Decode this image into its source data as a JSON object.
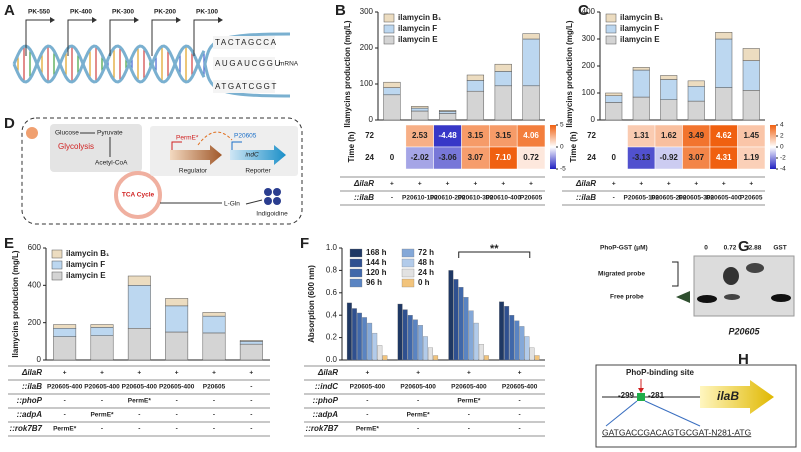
{
  "chart_data": [
    {
      "label": "B",
      "type": "bar",
      "stacked": true,
      "ylabel": "Ilamycins production (mg/L)",
      "ylim": [
        0,
        300
      ],
      "yticks": [
        0,
        100,
        200,
        300
      ],
      "series": [
        {
          "name": "ilamycin E",
          "color": "#d4d4d4",
          "values": [
            70,
            25,
            18,
            80,
            95,
            95
          ]
        },
        {
          "name": "ilamycin F",
          "color": "#bcd7f0",
          "values": [
            20,
            8,
            6,
            30,
            40,
            130
          ]
        },
        {
          "name": "ilamycin B₁",
          "color": "#ecdcc0",
          "values": [
            15,
            5,
            3,
            15,
            20,
            15
          ]
        }
      ],
      "heatmap": {
        "ylabel": "Time (h)",
        "rows": [
          "72",
          "24"
        ],
        "values": [
          [
            null,
            2.53,
            -4.48,
            3.15,
            3.15,
            4.06
          ],
          [
            0,
            -2.02,
            -3.06,
            3.07,
            7.1,
            0.72
          ]
        ],
        "value_labels": [
          [
            null,
            "2.53",
            "-4.48",
            "3.15",
            "3.15",
            "4.06"
          ],
          [
            "0",
            "-2.02",
            "-3.06",
            "3.07",
            "7.10",
            "0.72"
          ]
        ],
        "zlim": [
          -5,
          5
        ],
        "zticks": [
          5,
          0,
          -5
        ]
      },
      "table": {
        "rows": [
          {
            "label": "ΔilaR",
            "cells": [
              "+",
              "+",
              "+",
              "+",
              "+",
              "+"
            ]
          },
          {
            "label": "::ilaB",
            "cells": [
              "-",
              "P20610-100",
              "P20610-200",
              "P20610-300",
              "P20610-400",
              "P20605"
            ]
          }
        ]
      }
    },
    {
      "label": "C",
      "type": "bar",
      "stacked": true,
      "ylabel": "Ilamycins production (mg/L)",
      "ylim": [
        0,
        400
      ],
      "yticks": [
        0,
        100,
        200,
        300,
        400
      ],
      "series": [
        {
          "name": "ilamycin E",
          "color": "#d4d4d4",
          "values": [
            65,
            85,
            75,
            70,
            120,
            110
          ]
        },
        {
          "name": "ilamycin F",
          "color": "#bcd7f0",
          "values": [
            25,
            100,
            75,
            55,
            180,
            110
          ]
        },
        {
          "name": "ilamycin B₁",
          "color": "#ecdcc0",
          "values": [
            10,
            10,
            15,
            20,
            25,
            45
          ]
        }
      ],
      "heatmap": {
        "ylabel": "Time (h)",
        "rows": [
          "72",
          "24"
        ],
        "values": [
          [
            null,
            1.31,
            1.62,
            3.49,
            4.62,
            1.45
          ],
          [
            0,
            -3.13,
            -0.92,
            3.07,
            4.31,
            1.19
          ]
        ],
        "value_labels": [
          [
            null,
            "1.31",
            "1.62",
            "3.49",
            "4.62",
            "1.45"
          ],
          [
            "0",
            "-3.13",
            "-0.92",
            "3.07",
            "4.31",
            "1.19"
          ]
        ],
        "zlim": [
          -4,
          4
        ],
        "zticks": [
          4,
          2,
          0,
          -2,
          -4
        ]
      },
      "table": {
        "rows": [
          {
            "label": "ΔilaR",
            "cells": [
              "+",
              "+",
              "+",
              "+",
              "+",
              "+"
            ]
          },
          {
            "label": "::ilaB",
            "cells": [
              "-",
              "P20605-100",
              "P20605-200",
              "P20605-300",
              "P20605-400",
              "P20605"
            ]
          }
        ]
      }
    },
    {
      "label": "E",
      "type": "bar",
      "stacked": true,
      "ylabel": "Ilamycins production (mg/L)",
      "ylim": [
        0,
        600
      ],
      "yticks": [
        0,
        200,
        400,
        600
      ],
      "series": [
        {
          "name": "ilamycin E",
          "color": "#d4d4d4",
          "values": [
            125,
            130,
            170,
            150,
            145,
            85
          ]
        },
        {
          "name": "ilamycin F",
          "color": "#bcd7f0",
          "values": [
            45,
            45,
            230,
            140,
            90,
            15
          ]
        },
        {
          "name": "ilamycin B₁",
          "color": "#ecdcc0",
          "values": [
            20,
            15,
            50,
            40,
            20,
            5
          ]
        }
      ],
      "table": {
        "rows": [
          {
            "label": "ΔilaR",
            "cells": [
              "+",
              "+",
              "+",
              "+",
              "+",
              "+"
            ]
          },
          {
            "label": "::ilaB",
            "cells": [
              "P20605-400",
              "P20605-400",
              "P20605-400",
              "P20605-400",
              "P20605",
              "-"
            ]
          },
          {
            "label": "::phoP",
            "cells": [
              "-",
              "-",
              "PermE*",
              "-",
              "-",
              "-"
            ]
          },
          {
            "label": "::adpA",
            "cells": [
              "-",
              "PermE*",
              "-",
              "-",
              "-",
              "-"
            ]
          },
          {
            "label": "::rok7B7",
            "cells": [
              "PermE*",
              "-",
              "-",
              "-",
              "-",
              "-"
            ]
          }
        ]
      }
    },
    {
      "label": "F",
      "type": "grouped_bar",
      "ylabel": "Absorption (600 nm)",
      "ylim": [
        0,
        1
      ],
      "yticks": [
        {
          "value": 0,
          "label": "0.0"
        },
        0.2,
        0.4,
        0.6,
        0.8,
        {
          "value": 1,
          "label": "1.0"
        }
      ],
      "annotation": "**",
      "series": [
        {
          "name": "168 h",
          "color": "#1f3864",
          "values": [
            0.51,
            0.5,
            0.8,
            0.52
          ]
        },
        {
          "name": "144 h",
          "color": "#2f5090",
          "values": [
            0.46,
            0.45,
            0.72,
            0.48
          ]
        },
        {
          "name": "120 h",
          "color": "#4068aa",
          "values": [
            0.42,
            0.4,
            0.65,
            0.4
          ]
        },
        {
          "name": "96 h",
          "color": "#5a84c2",
          "values": [
            0.38,
            0.36,
            0.56,
            0.35
          ]
        },
        {
          "name": "72 h",
          "color": "#84a8d8",
          "values": [
            0.33,
            0.31,
            0.44,
            0.3
          ]
        },
        {
          "name": "48 h",
          "color": "#b2cbea",
          "values": [
            0.24,
            0.21,
            0.33,
            0.21
          ]
        },
        {
          "name": "24 h",
          "color": "#e2e2e2",
          "values": [
            0.13,
            0.11,
            0.14,
            0.11
          ]
        },
        {
          "name": "0 h",
          "color": "#f2c47c",
          "values": [
            0.04,
            0.04,
            0.04,
            0.04
          ]
        }
      ],
      "table": {
        "rows": [
          {
            "label": "ΔilaR",
            "cells": [
              "+",
              "+",
              "+",
              "+"
            ]
          },
          {
            "label": "::indC",
            "cells": [
              "P20605-400",
              "P20605-400",
              "P20605-400",
              "P20605-400"
            ]
          },
          {
            "label": "::phoP",
            "cells": [
              "-",
              "-",
              "PermE*",
              "-"
            ]
          },
          {
            "label": "::adpA",
            "cells": [
              "-",
              "PermE*",
              "-",
              "-"
            ]
          },
          {
            "label": "::rok7B7",
            "cells": [
              "PermE*",
              "-",
              "-",
              "-"
            ]
          }
        ]
      }
    }
  ],
  "panels": {
    "A": {
      "label": "A",
      "promoters": [
        "PK-550",
        "PK-400",
        "PK-300",
        "PK-200",
        "PK-100"
      ],
      "sequence": [
        "TACTAGCCA",
        "AUGAUCGGU",
        "ATGATCGGT"
      ],
      "mrna": "mRNA"
    },
    "D": {
      "label": "D",
      "glucose": "Glucose",
      "pyruvate": "Pyruvate",
      "glycolysis": "Glycolysis",
      "acetyl_coa": "Acetyl-CoA",
      "tca": "TCA Cycle",
      "lgln": "L-Gln",
      "indigoidine": "Indigoidine",
      "promoter1": "PermE*",
      "promoter2": "P20605",
      "gene": "indC",
      "regulator": "Regulator",
      "reporter": "Reporter"
    },
    "G": {
      "label": "G",
      "title": "PhoP-GST (μM)",
      "lanes": [
        "0",
        "0.72",
        "2.88",
        "GST"
      ],
      "migrated": "Migrated probe",
      "free": "Free probe",
      "probe": "P20605"
    },
    "H": {
      "label": "H",
      "site": "PhoP-binding site",
      "start": "-299",
      "end": "-281",
      "gene": "ilaB",
      "sequence": "GATGACCGACAGTGCGAT-N281-ATG"
    }
  }
}
